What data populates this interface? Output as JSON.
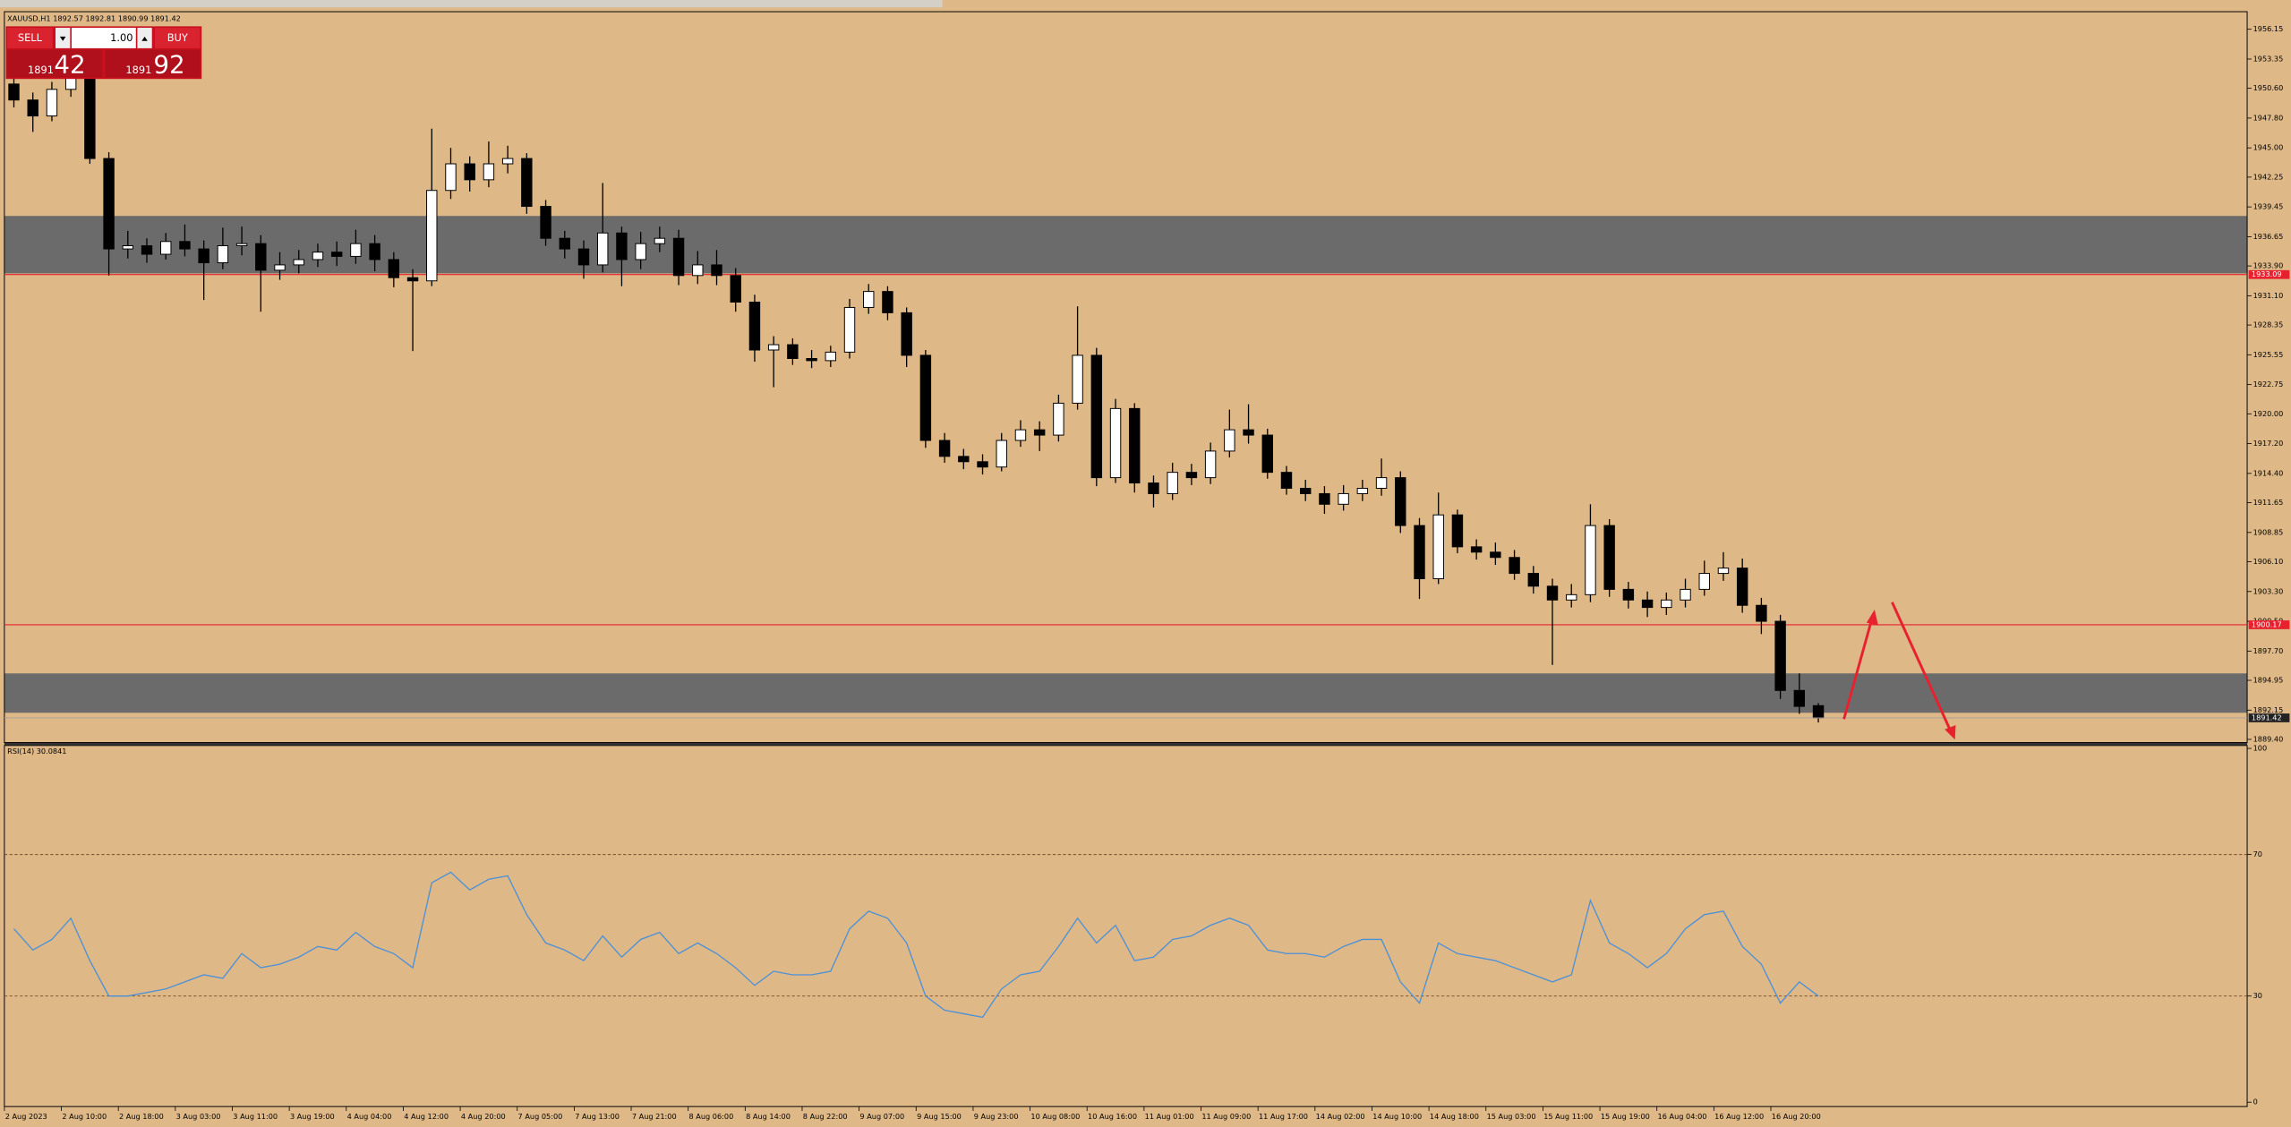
{
  "header": {
    "symbol_info": "XAUUSD,H1  1892.57 1892.81 1890.99 1891.42"
  },
  "trade_panel": {
    "sell": "SELL",
    "buy": "BUY",
    "lot": "1.00",
    "sell_prefix": "1891",
    "sell_pips": "42",
    "buy_prefix": "1891",
    "buy_pips": "92"
  },
  "chart_data": [
    {
      "type": "candlestick",
      "categories": [
        "2 Aug 2023",
        null,
        null,
        "2 Aug 10:00",
        null,
        null,
        "2 Aug 18:00",
        null,
        null,
        "3 Aug 03:00",
        null,
        null,
        "3 Aug 11:00",
        null,
        null,
        "3 Aug 19:00",
        null,
        null,
        "4 Aug 04:00",
        null,
        null,
        "4 Aug 12:00",
        null,
        null,
        "4 Aug 20:00",
        null,
        null,
        "7 Aug 05:00",
        null,
        null,
        "7 Aug 13:00",
        null,
        null,
        "7 Aug 21:00",
        null,
        null,
        "8 Aug 06:00",
        null,
        null,
        "8 Aug 14:00",
        null,
        null,
        "8 Aug 22:00",
        null,
        null,
        "9 Aug 07:00",
        null,
        null,
        "9 Aug 15:00",
        null,
        null,
        "9 Aug 23:00",
        null,
        null,
        "10 Aug 08:00",
        null,
        null,
        "10 Aug 16:00",
        null,
        null,
        "11 Aug 01:00",
        null,
        null,
        "11 Aug 09:00",
        null,
        null,
        "11 Aug 17:00",
        null,
        null,
        "14 Aug 02:00",
        null,
        null,
        "14 Aug 10:00",
        null,
        null,
        "14 Aug 18:00",
        null,
        null,
        "15 Aug 03:00",
        null,
        null,
        "15 Aug 11:00",
        null,
        null,
        "15 Aug 19:00",
        null,
        null,
        "16 Aug 04:00",
        null,
        null,
        "16 Aug 12:00",
        null,
        null,
        "16 Aug 20:00",
        null,
        null
      ],
      "open": [
        1951.0,
        1949.5,
        1948.0,
        1950.5,
        1952.0,
        1944.0,
        1935.5,
        1935.8,
        1935.0,
        1936.2,
        1935.5,
        1934.2,
        1935.8,
        1936.0,
        1933.5,
        1934.0,
        1934.5,
        1935.2,
        1934.8,
        1936.0,
        1934.5,
        1932.8,
        1932.5,
        1941.0,
        1943.5,
        1942.0,
        1943.5,
        1944.0,
        1939.5,
        1936.5,
        1935.5,
        1934.0,
        1937.0,
        1934.5,
        1936.0,
        1936.5,
        1933.0,
        1934.0,
        1933.0,
        1930.5,
        1926.0,
        1926.5,
        1925.2,
        1925.0,
        1925.8,
        1930.0,
        1931.5,
        1929.5,
        1925.5,
        1917.5,
        1916.0,
        1915.5,
        1915.0,
        1917.5,
        1918.5,
        1918.0,
        1921.0,
        1925.5,
        1914.0,
        1920.5,
        1913.5,
        1912.5,
        1914.5,
        1914.0,
        1916.5,
        1918.5,
        1918.0,
        1914.5,
        1913.0,
        1912.5,
        1911.5,
        1912.5,
        1913.0,
        1914.0,
        1909.5,
        1904.5,
        1910.5,
        1907.5,
        1907.0,
        1906.5,
        1905.0,
        1903.8,
        1902.5,
        1903.0,
        1909.5,
        1903.5,
        1902.5,
        1901.8,
        1902.5,
        1903.5,
        1905.0,
        1905.5,
        1902.0,
        1900.5,
        1894.0,
        1892.57
      ],
      "high": [
        1953.4,
        1950.2,
        1951.2,
        1953.5,
        1952.6,
        1944.6,
        1937.2,
        1936.5,
        1937.0,
        1937.8,
        1936.3,
        1937.5,
        1937.6,
        1936.8,
        1935.2,
        1935.4,
        1936.0,
        1936.2,
        1937.3,
        1936.8,
        1935.2,
        1933.6,
        1946.8,
        1945.0,
        1944.2,
        1945.6,
        1945.2,
        1944.5,
        1940.1,
        1937.2,
        1936.3,
        1941.7,
        1937.6,
        1937.1,
        1937.6,
        1937.3,
        1935.3,
        1935.4,
        1933.7,
        1931.2,
        1927.3,
        1927.1,
        1926.0,
        1926.4,
        1930.8,
        1932.2,
        1932.0,
        1930.0,
        1926.0,
        1918.2,
        1916.7,
        1916.2,
        1918.2,
        1919.4,
        1919.3,
        1921.8,
        1930.1,
        1926.2,
        1921.4,
        1921.0,
        1914.2,
        1915.4,
        1915.3,
        1917.3,
        1920.4,
        1920.9,
        1918.6,
        1915.1,
        1913.8,
        1913.2,
        1913.3,
        1913.8,
        1915.8,
        1914.6,
        1910.2,
        1912.6,
        1911.0,
        1908.2,
        1907.9,
        1907.2,
        1905.7,
        1904.5,
        1904.0,
        1911.5,
        1910.1,
        1904.2,
        1903.3,
        1903.2,
        1904.5,
        1906.2,
        1907.0,
        1906.4,
        1902.7,
        1901.1,
        1895.6,
        1892.81
      ],
      "low": [
        1948.8,
        1946.5,
        1947.5,
        1949.8,
        1943.5,
        1933.0,
        1934.6,
        1934.2,
        1934.5,
        1934.8,
        1930.7,
        1933.6,
        1934.9,
        1929.6,
        1932.6,
        1933.2,
        1933.8,
        1933.9,
        1934.1,
        1933.4,
        1931.9,
        1925.9,
        1932.0,
        1940.2,
        1940.9,
        1941.3,
        1942.6,
        1938.8,
        1935.8,
        1934.6,
        1932.7,
        1933.3,
        1932.0,
        1933.6,
        1935.2,
        1932.1,
        1932.2,
        1932.1,
        1929.6,
        1924.9,
        1922.5,
        1924.6,
        1924.3,
        1924.4,
        1925.2,
        1929.4,
        1928.8,
        1924.4,
        1916.8,
        1915.4,
        1914.8,
        1914.3,
        1914.6,
        1916.9,
        1916.5,
        1917.4,
        1920.4,
        1913.2,
        1913.5,
        1912.6,
        1911.2,
        1911.9,
        1913.3,
        1913.4,
        1915.9,
        1917.2,
        1913.9,
        1912.4,
        1911.8,
        1910.6,
        1910.9,
        1911.8,
        1912.3,
        1908.8,
        1902.6,
        1904.0,
        1906.9,
        1906.3,
        1905.8,
        1904.4,
        1903.1,
        1896.4,
        1901.8,
        1902.3,
        1902.8,
        1901.7,
        1900.9,
        1901.1,
        1901.8,
        1902.9,
        1904.3,
        1901.3,
        1899.3,
        1893.2,
        1891.8,
        1890.99
      ],
      "close": [
        1949.5,
        1948.0,
        1950.5,
        1952.0,
        1944.0,
        1935.5,
        1935.8,
        1935.0,
        1936.2,
        1935.5,
        1934.2,
        1935.8,
        1936.0,
        1933.5,
        1934.0,
        1934.5,
        1935.2,
        1934.8,
        1936.0,
        1934.5,
        1932.8,
        1932.5,
        1941.0,
        1943.5,
        1942.0,
        1943.5,
        1944.0,
        1939.5,
        1936.5,
        1935.5,
        1934.0,
        1937.0,
        1934.5,
        1936.0,
        1936.5,
        1933.0,
        1934.0,
        1933.0,
        1930.5,
        1926.0,
        1926.5,
        1925.2,
        1925.0,
        1925.8,
        1930.0,
        1931.5,
        1929.5,
        1925.5,
        1917.5,
        1916.0,
        1915.5,
        1915.0,
        1917.5,
        1918.5,
        1918.0,
        1921.0,
        1925.5,
        1914.0,
        1920.5,
        1913.5,
        1912.5,
        1914.5,
        1914.0,
        1916.5,
        1918.5,
        1918.0,
        1914.5,
        1913.0,
        1912.5,
        1911.5,
        1912.5,
        1913.0,
        1914.0,
        1909.5,
        1904.5,
        1910.5,
        1907.5,
        1907.0,
        1906.5,
        1905.0,
        1903.8,
        1902.5,
        1903.0,
        1909.5,
        1903.5,
        1902.5,
        1901.8,
        1902.5,
        1903.5,
        1905.0,
        1905.5,
        1902.0,
        1900.5,
        1894.0,
        1892.5,
        1891.42
      ],
      "up_color": "#ffffff",
      "down_color": "#000000",
      "ylim": [
        1889.1,
        1957.8
      ],
      "yticks": [
        1956.15,
        1953.35,
        {
          "value": 1950.6,
          "label": "1950.60"
        },
        {
          "value": 1947.8,
          "label": "1947.80"
        },
        {
          "value": 1945,
          "label": "1945.00"
        },
        1942.25,
        1939.45,
        1936.65,
        {
          "value": 1933.9,
          "label": "1933.90"
        },
        {
          "value": 1931.1,
          "label": "1931.10"
        },
        1928.35,
        1925.55,
        1922.75,
        {
          "value": 1920,
          "label": "1920.00"
        },
        {
          "value": 1917.2,
          "label": "1917.20"
        },
        {
          "value": 1914.4,
          "label": "1914.40"
        },
        1911.65,
        1908.85,
        {
          "value": 1906.1,
          "label": "1906.10"
        },
        {
          "value": 1903.3,
          "label": "1903.30"
        },
        {
          "value": 1900.5,
          "label": "1900.50"
        },
        {
          "value": 1897.7,
          "label": "1897.70"
        },
        1894.95,
        1892.15,
        {
          "value": 1889.4,
          "label": "1889.40"
        }
      ],
      "zones": [
        {
          "from": 1933.2,
          "to": 1938.6
        },
        {
          "from": 1891.9,
          "to": 1895.6
        }
      ],
      "zone_color": "#6b6b6b",
      "hlines": [
        1933.09,
        1900.17
      ],
      "hline_color": "#e8212f"
    },
    {
      "type": "line",
      "title": "RSI(14) 30.0841",
      "color": "#4a90d9",
      "values": [
        49,
        43,
        46,
        52,
        40,
        30,
        30,
        31,
        32,
        34,
        36,
        35,
        42,
        38,
        39,
        41,
        44,
        43,
        48,
        44,
        42,
        38,
        62,
        65,
        60,
        63,
        64,
        53,
        45,
        43,
        40,
        47,
        41,
        46,
        48,
        42,
        45,
        42,
        38,
        33,
        37,
        36,
        36,
        37,
        49,
        54,
        52,
        45,
        30,
        26,
        25,
        24,
        32,
        36,
        37,
        44,
        52,
        45,
        50,
        40,
        41,
        46,
        47,
        50,
        52,
        50,
        43,
        42,
        42,
        41,
        44,
        46,
        46,
        34,
        28,
        45,
        42,
        41,
        40,
        38,
        36,
        34,
        36,
        57,
        45,
        42,
        38,
        42,
        49,
        53,
        54,
        44,
        39,
        28,
        34,
        30
      ],
      "ylim": [
        0,
        100
      ],
      "yticks": [
        0,
        30,
        70,
        100
      ]
    }
  ]
}
